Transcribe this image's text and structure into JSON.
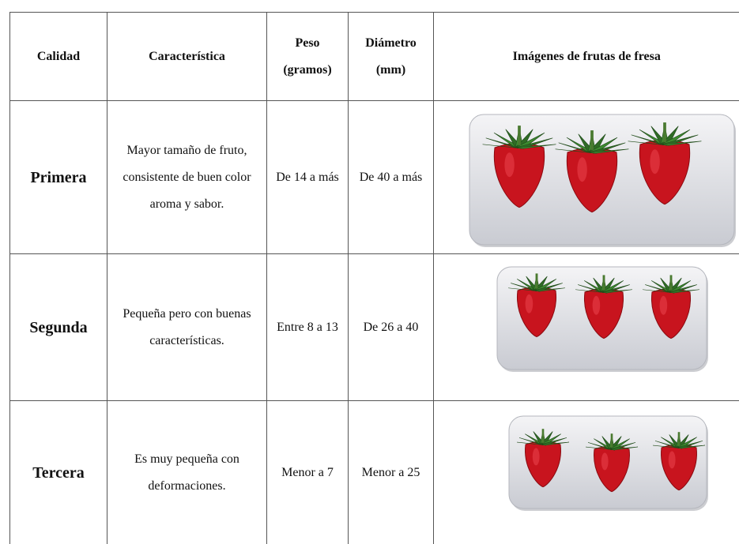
{
  "table": {
    "header": [
      [
        "Calidad"
      ],
      [
        "Característica"
      ],
      [
        "Peso",
        "(gramos)"
      ],
      [
        "Diámetro",
        "(mm)"
      ],
      [
        "Imágenes de frutas de fresa"
      ]
    ],
    "rows": [
      [
        [
          "Primera"
        ],
        [
          "Mayor tamaño de fruto,",
          "consistente de buen color",
          "aroma y sabor."
        ],
        [
          "De 14 a más"
        ],
        [
          "De 40 a más"
        ]
      ],
      [
        [
          "Segunda"
        ],
        [
          "Pequeña pero con buenas",
          "características."
        ],
        [
          "Entre 8 a 13"
        ],
        [
          "De 26 a 40"
        ]
      ],
      [
        [
          "Tercera"
        ],
        [
          "Es muy pequeña con",
          "deformaciones."
        ],
        [
          "Menor a 7"
        ],
        [
          "Menor a 25"
        ]
      ]
    ]
  }
}
